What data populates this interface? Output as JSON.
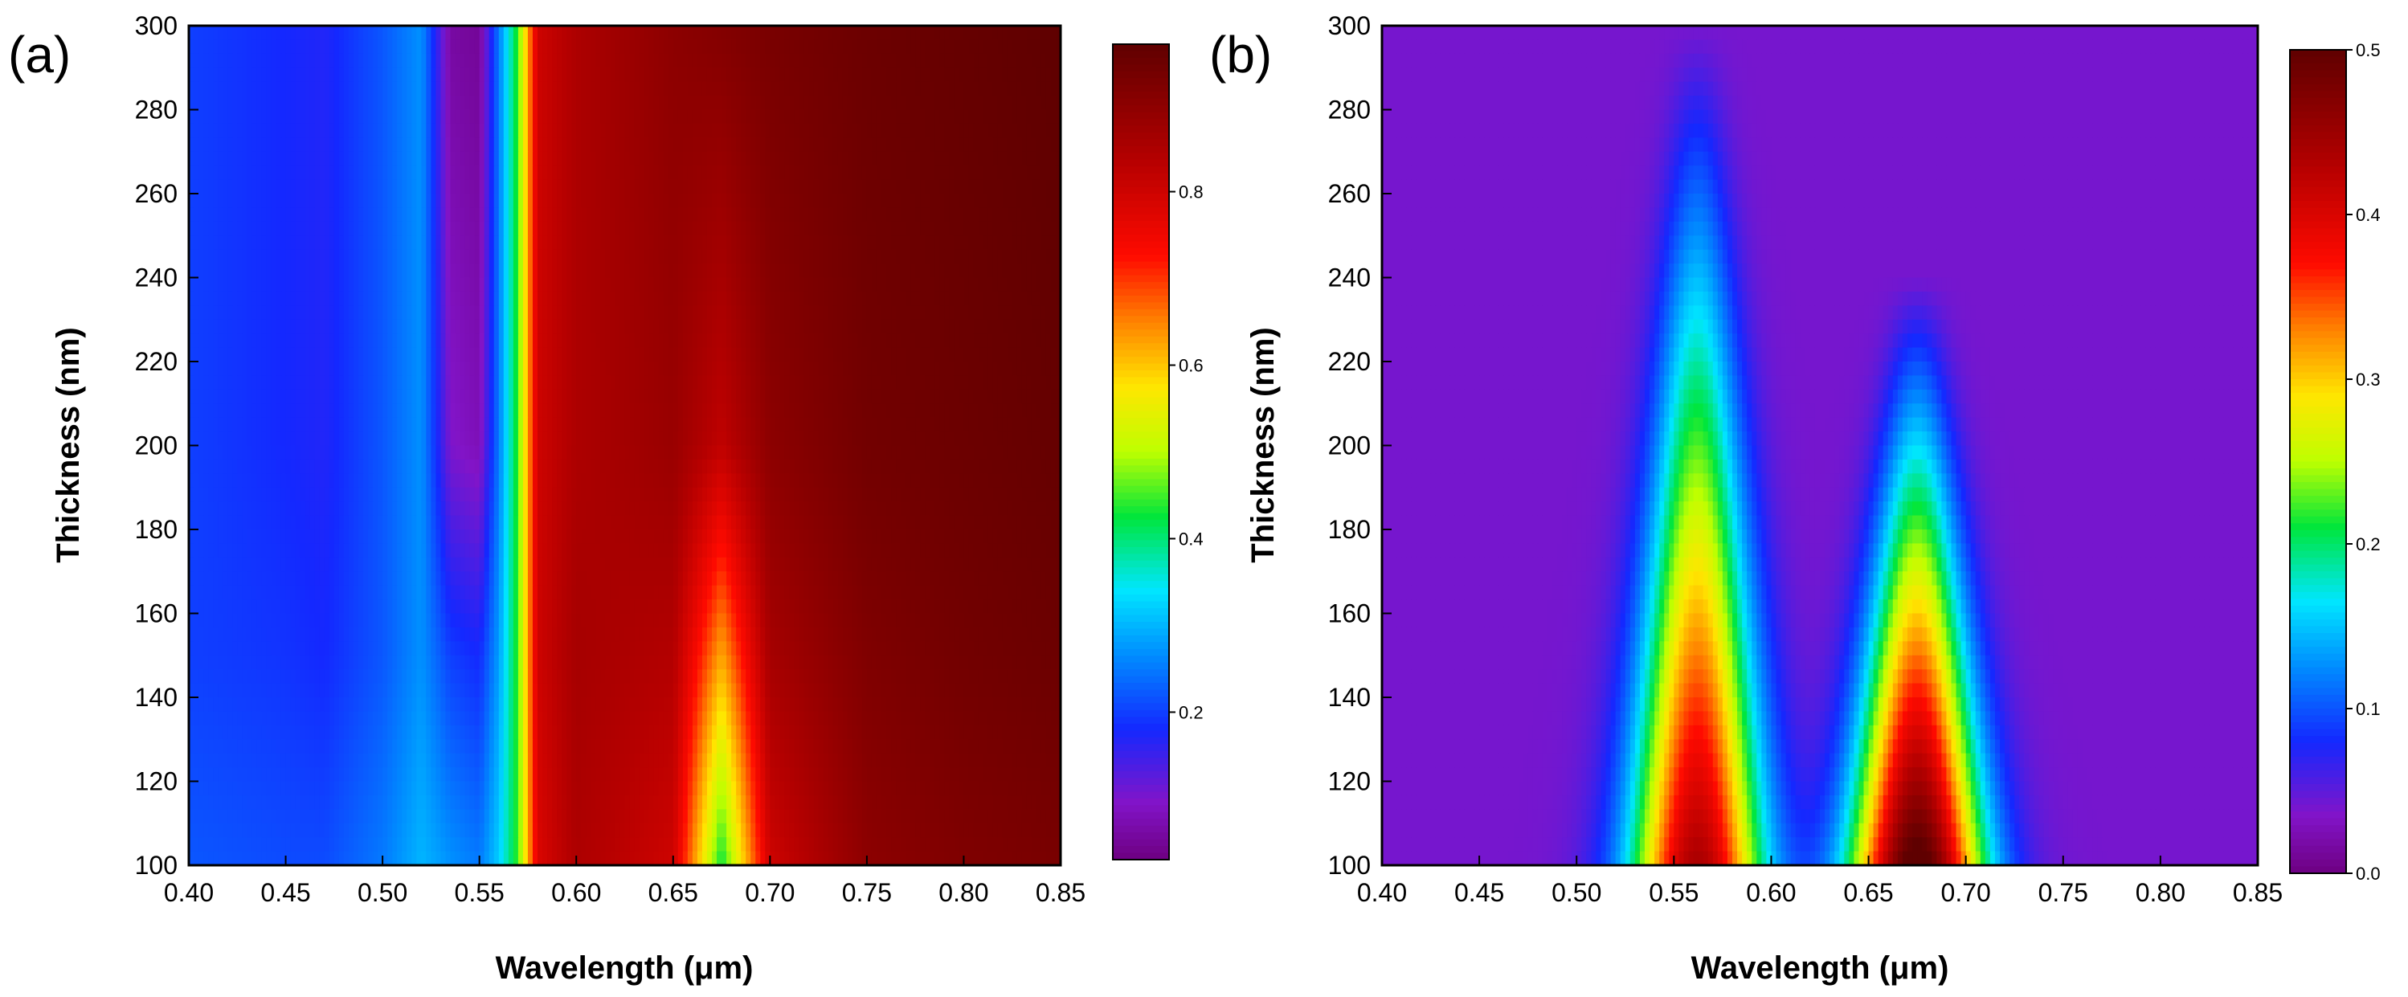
{
  "chart_data": [
    {
      "panel_label": "(a)",
      "type": "heatmap",
      "title": "",
      "xlabel": "Wavelength (μm)",
      "ylabel": "Thickness (nm)",
      "xlim": [
        0.4,
        0.85
      ],
      "ylim": [
        100,
        300
      ],
      "xticks": [
        "0.40",
        "0.45",
        "0.50",
        "0.55",
        "0.60",
        "0.65",
        "0.70",
        "0.75",
        "0.80",
        "0.85"
      ],
      "yticks": [
        "100",
        "120",
        "140",
        "160",
        "180",
        "200",
        "220",
        "240",
        "260",
        "280",
        "300"
      ],
      "colorbar": {
        "min": 0.03,
        "max": 0.97,
        "ticks": [
          "0.2",
          "0.4",
          "0.6",
          "0.8"
        ],
        "tick_values": [
          0.2,
          0.4,
          0.6,
          0.8
        ]
      },
      "z": [
        {
          "thickness": 300,
          "wavelength": [
            0.4,
            0.45,
            0.47,
            0.5,
            0.52,
            0.535,
            0.55,
            0.56,
            0.57,
            0.58,
            0.6,
            0.65,
            0.7,
            0.75,
            0.8,
            0.85
          ],
          "values": [
            0.2,
            0.18,
            0.17,
            0.22,
            0.27,
            0.06,
            0.05,
            0.25,
            0.45,
            0.8,
            0.85,
            0.9,
            0.93,
            0.95,
            0.96,
            0.97
          ]
        },
        {
          "thickness": 200,
          "wavelength": [
            0.4,
            0.45,
            0.47,
            0.5,
            0.52,
            0.535,
            0.55,
            0.56,
            0.57,
            0.58,
            0.6,
            0.65,
            0.675,
            0.7,
            0.75,
            0.8,
            0.85
          ],
          "values": [
            0.2,
            0.18,
            0.17,
            0.22,
            0.27,
            0.1,
            0.08,
            0.25,
            0.45,
            0.8,
            0.85,
            0.88,
            0.82,
            0.9,
            0.94,
            0.95,
            0.96
          ]
        },
        {
          "thickness": 150,
          "wavelength": [
            0.4,
            0.45,
            0.47,
            0.5,
            0.52,
            0.535,
            0.55,
            0.56,
            0.57,
            0.58,
            0.6,
            0.65,
            0.675,
            0.7,
            0.75,
            0.8,
            0.85
          ],
          "values": [
            0.2,
            0.19,
            0.18,
            0.22,
            0.27,
            0.2,
            0.18,
            0.28,
            0.45,
            0.8,
            0.86,
            0.84,
            0.62,
            0.86,
            0.92,
            0.94,
            0.95
          ]
        },
        {
          "thickness": 100,
          "wavelength": [
            0.4,
            0.45,
            0.47,
            0.5,
            0.52,
            0.535,
            0.55,
            0.56,
            0.57,
            0.58,
            0.6,
            0.65,
            0.675,
            0.7,
            0.75,
            0.8,
            0.85
          ],
          "values": [
            0.22,
            0.21,
            0.21,
            0.25,
            0.3,
            0.27,
            0.25,
            0.32,
            0.45,
            0.78,
            0.85,
            0.8,
            0.42,
            0.8,
            0.9,
            0.92,
            0.93
          ]
        }
      ]
    },
    {
      "panel_label": "(b)",
      "type": "heatmap",
      "title": "",
      "xlabel": "Wavelength (μm)",
      "ylabel": "Thickness (nm)",
      "xlim": [
        0.4,
        0.85
      ],
      "ylim": [
        100,
        300
      ],
      "xticks": [
        "0.40",
        "0.45",
        "0.50",
        "0.55",
        "0.60",
        "0.65",
        "0.70",
        "0.75",
        "0.80",
        "0.85"
      ],
      "yticks": [
        "100",
        "120",
        "140",
        "160",
        "180",
        "200",
        "220",
        "240",
        "260",
        "280",
        "300"
      ],
      "colorbar": {
        "min": 0.0,
        "max": 0.5,
        "ticks": [
          "0.0",
          "0.1",
          "0.2",
          "0.3",
          "0.4",
          "0.5"
        ],
        "tick_values": [
          0.0,
          0.1,
          0.2,
          0.3,
          0.4,
          0.5
        ]
      },
      "peaks": [
        {
          "wavelength": 0.562,
          "peak_value": 0.4,
          "fade_thickness": 300
        },
        {
          "wavelength": 0.675,
          "peak_value": 0.48,
          "fade_thickness": 240
        }
      ],
      "background_value": 0.04
    }
  ]
}
